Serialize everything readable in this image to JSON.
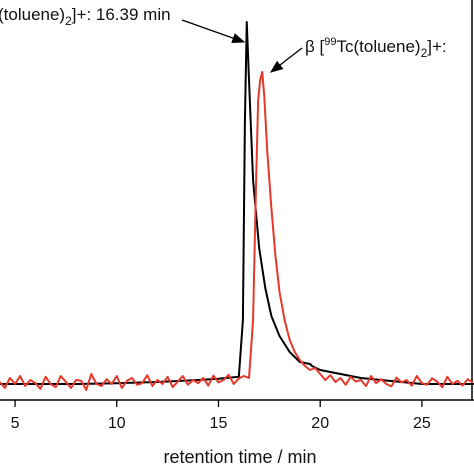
{
  "chart_data": {
    "type": "line",
    "annotations": [
      [
        "(toluene)",
        "2",
        "]+: 16.39 min"
      ],
      [
        "β [",
        "99",
        "Tc(toluene)",
        "2",
        "]+:"
      ]
    ],
    "x_label": "retention time / min",
    "xlim": [
      4.26,
      27.56
    ],
    "xticks": [
      5,
      10,
      15,
      20,
      25
    ],
    "ylim": [
      0,
      100
    ],
    "series": [
      {
        "color": "#000000",
        "x": [
          4.26,
          6,
          8,
          10,
          12,
          14,
          15,
          16,
          16.2,
          16.3,
          16.39,
          16.5,
          16.7,
          17,
          17.3,
          17.6,
          18,
          18.5,
          19,
          19.5,
          19.6,
          20,
          21,
          22,
          23,
          24,
          25,
          26,
          27.56
        ],
        "values": [
          4,
          4,
          4,
          4.2,
          4.5,
          5,
          5.3,
          5.8,
          20,
          70,
          94.5,
          80,
          55,
          38,
          28,
          21,
          16,
          12,
          9.5,
          9,
          8.5,
          7.5,
          6.5,
          5.5,
          5,
          4.5,
          4,
          4,
          4
        ]
      },
      {
        "color": "#e8382b",
        "x": [
          4.25,
          4.5,
          4.75,
          5,
          5.25,
          5.5,
          5.75,
          6,
          6.25,
          6.5,
          6.75,
          7,
          7.25,
          7.5,
          7.75,
          8,
          8.25,
          8.5,
          8.75,
          9,
          9.25,
          9.5,
          9.75,
          10,
          10.25,
          10.5,
          10.75,
          11,
          11.25,
          11.5,
          11.75,
          12,
          12.25,
          12.5,
          12.75,
          13,
          13.25,
          13.5,
          13.75,
          14,
          14.25,
          14.5,
          14.75,
          15,
          15.25,
          15.5,
          15.75,
          16,
          16.25,
          16.5,
          16.7,
          16.85,
          16.95,
          17.05,
          17.15,
          17.25,
          17.4,
          17.6,
          17.8,
          18,
          18.25,
          18.5,
          18.75,
          19,
          19.25,
          19.5,
          19.75,
          20,
          20.25,
          20.5,
          20.75,
          21,
          21.25,
          21.5,
          21.75,
          22,
          22.25,
          22.5,
          22.75,
          23,
          23.25,
          23.5,
          23.75,
          24,
          24.25,
          24.5,
          24.75,
          25,
          25.25,
          25.5,
          25.75,
          26,
          26.25,
          26.5,
          26.75,
          27,
          27.25,
          27.5
        ],
        "values": [
          4.5,
          3,
          5.5,
          4,
          6,
          3.5,
          5,
          4.2,
          2.8,
          5.8,
          4,
          3.2,
          6,
          4.5,
          3,
          5,
          4.8,
          2.5,
          6.5,
          4,
          3.5,
          5.2,
          4,
          6,
          3,
          4.8,
          5.5,
          3.8,
          4.2,
          6.2,
          3.5,
          5,
          4,
          5.8,
          3.2,
          4.6,
          6,
          3.8,
          5,
          4.2,
          5.5,
          3.6,
          6.1,
          4.4,
          5,
          6.3,
          4,
          5.4,
          6,
          5.5,
          20,
          55,
          75,
          80,
          82,
          76,
          62,
          48,
          36,
          27,
          20,
          15,
          12,
          10,
          8.5,
          7.5,
          8,
          6.5,
          5,
          6.2,
          4.5,
          5.5,
          3.8,
          5.8,
          4.6,
          5,
          3.5,
          6,
          4.2,
          5.2,
          4,
          3.4,
          5.6,
          4.4,
          5,
          3.6,
          6,
          4.2,
          3.8,
          5.4,
          4.6,
          3.2,
          5.8,
          4,
          4.8,
          3.6,
          5.2,
          4.4
        ]
      }
    ]
  }
}
